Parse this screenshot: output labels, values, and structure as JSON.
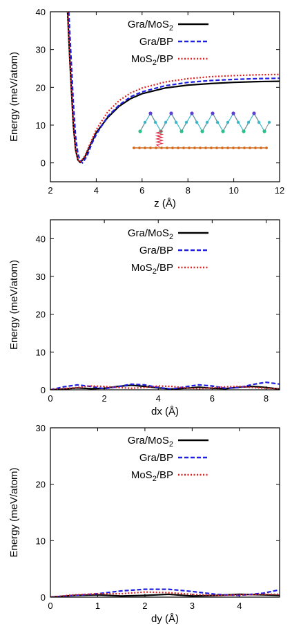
{
  "chart_data": [
    {
      "type": "line",
      "xlabel": "z (Å)",
      "ylabel": "Energy (meV/atom)",
      "xlim": [
        2,
        12
      ],
      "ylim": [
        -5,
        40
      ],
      "xticks": [
        2,
        4,
        6,
        8,
        10,
        12
      ],
      "yticks": [
        0,
        10,
        20,
        30,
        40
      ],
      "legend_position": "top-right",
      "inset": "layered structure schematic",
      "series": [
        {
          "name": "Gra/MoS2",
          "color": "#000000",
          "dash": "solid",
          "x": [
            2.75,
            2.85,
            3.0,
            3.1,
            3.2,
            3.3,
            3.5,
            3.8,
            4.0,
            4.5,
            5.0,
            5.5,
            6.0,
            7.0,
            8.0,
            9.0,
            10.0,
            11.0,
            12.0
          ],
          "y": [
            40,
            27,
            10,
            3.5,
            0.8,
            0.1,
            1.5,
            5.5,
            8.0,
            12.0,
            15.0,
            17.0,
            18.3,
            19.8,
            20.6,
            21.0,
            21.3,
            21.5,
            21.6
          ]
        },
        {
          "name": "Gra/BP",
          "color": "#1f1fe0",
          "dash": "dashed",
          "x": [
            2.8,
            2.9,
            3.0,
            3.1,
            3.2,
            3.3,
            3.4,
            3.6,
            3.8,
            4.0,
            4.5,
            5.0,
            5.5,
            6.0,
            7.0,
            8.0,
            9.0,
            10.0,
            11.0,
            12.0
          ],
          "y": [
            40,
            28,
            16,
            7,
            2.5,
            0.5,
            0.0,
            1.8,
            5.0,
            7.5,
            12.3,
            15.3,
            17.5,
            18.8,
            20.4,
            21.3,
            21.8,
            22.1,
            22.3,
            22.4
          ]
        },
        {
          "name": "MoS2/BP",
          "color": "#e01f1f",
          "dash": "dotted",
          "x": [
            2.75,
            2.85,
            3.0,
            3.1,
            3.2,
            3.3,
            3.5,
            3.8,
            4.0,
            4.5,
            5.0,
            5.5,
            6.0,
            7.0,
            8.0,
            9.0,
            10.0,
            11.0,
            12.0
          ],
          "y": [
            40,
            27,
            10,
            3.2,
            0.7,
            0.1,
            1.8,
            6.0,
            8.8,
            13.5,
            16.5,
            18.5,
            19.8,
            21.4,
            22.3,
            22.8,
            23.1,
            23.3,
            23.4
          ]
        }
      ]
    },
    {
      "type": "line",
      "xlabel": "dx (Å)",
      "ylabel": "Energy (meV/atom)",
      "xlim": [
        0,
        8.5
      ],
      "ylim": [
        0,
        45
      ],
      "xticks": [
        0,
        2,
        4,
        6,
        8
      ],
      "yticks": [
        0,
        10,
        20,
        30,
        40
      ],
      "legend_position": "top-right",
      "series": [
        {
          "name": "Gra/MoS2",
          "color": "#000000",
          "dash": "solid",
          "x": [
            0,
            0.5,
            1.0,
            1.5,
            2.0,
            2.5,
            3.0,
            3.5,
            4.0,
            4.5,
            5.0,
            5.5,
            6.0,
            6.5,
            7.0,
            7.5,
            8.0,
            8.5
          ],
          "y": [
            0,
            0.2,
            0.5,
            0.3,
            0.4,
            0.9,
            1.2,
            0.9,
            0.5,
            0.2,
            0.4,
            0.7,
            0.4,
            0.3,
            0.7,
            0.9,
            0.6,
            0.2
          ]
        },
        {
          "name": "Gra/BP",
          "color": "#1f1fe0",
          "dash": "dashed",
          "x": [
            0,
            0.5,
            1.0,
            1.5,
            2.0,
            2.5,
            3.0,
            3.5,
            4.0,
            4.5,
            5.0,
            5.5,
            6.0,
            6.5,
            7.0,
            7.5,
            8.0,
            8.5
          ],
          "y": [
            0,
            0.8,
            1.3,
            0.9,
            0.3,
            0.8,
            1.5,
            1.3,
            0.6,
            0.2,
            0.8,
            1.3,
            1.0,
            0.4,
            0.6,
            1.4,
            2.0,
            1.5
          ]
        },
        {
          "name": "MoS2/BP",
          "color": "#e01f1f",
          "dash": "dotted",
          "x": [
            0,
            0.5,
            1.0,
            1.5,
            2.0,
            2.5,
            3.0,
            3.5,
            4.0,
            4.5,
            5.0,
            5.5,
            6.0,
            6.5,
            7.0,
            7.5,
            8.0,
            8.5
          ],
          "y": [
            0,
            0.3,
            0.6,
            1.0,
            0.9,
            0.6,
            0.4,
            0.6,
            1.0,
            0.9,
            0.5,
            0.3,
            0.5,
            0.8,
            0.9,
            0.6,
            0.4,
            0.3
          ]
        }
      ]
    },
    {
      "type": "line",
      "xlabel": "dy (Å)",
      "ylabel": "Energy (meV/atom)",
      "xlim": [
        0,
        4.85
      ],
      "ylim": [
        0,
        30
      ],
      "xticks": [
        0,
        1,
        2,
        3,
        4
      ],
      "yticks": [
        0,
        10,
        20,
        30
      ],
      "legend_position": "top-right",
      "series": [
        {
          "name": "Gra/MoS2",
          "color": "#000000",
          "dash": "solid",
          "x": [
            0,
            0.5,
            1.0,
            1.5,
            2.0,
            2.5,
            3.0,
            3.5,
            4.0,
            4.5,
            4.85
          ],
          "y": [
            0,
            0.3,
            0.4,
            0.2,
            0.3,
            0.5,
            0.2,
            0.3,
            0.5,
            0.4,
            0.3
          ]
        },
        {
          "name": "Gra/BP",
          "color": "#1f1fe0",
          "dash": "dashed",
          "x": [
            0,
            0.5,
            1.0,
            1.5,
            2.0,
            2.5,
            3.0,
            3.5,
            4.0,
            4.5,
            4.85
          ],
          "y": [
            0,
            0.3,
            0.6,
            1.1,
            1.4,
            1.4,
            1.0,
            0.5,
            0.3,
            0.7,
            1.3
          ]
        },
        {
          "name": "MoS2/BP",
          "color": "#e01f1f",
          "dash": "dotted",
          "x": [
            0,
            0.5,
            1.0,
            1.5,
            2.0,
            2.5,
            3.0,
            3.5,
            4.0,
            4.5,
            4.85
          ],
          "y": [
            0,
            0.4,
            0.6,
            0.6,
            0.9,
            0.8,
            0.5,
            0.3,
            0.4,
            0.5,
            0.5
          ]
        }
      ]
    }
  ]
}
